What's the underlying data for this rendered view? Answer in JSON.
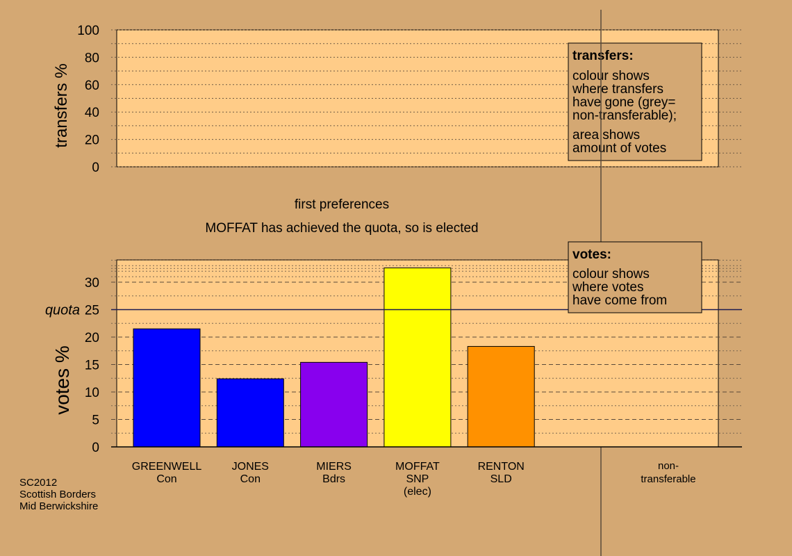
{
  "chart_data": [
    {
      "type": "area",
      "ylabel": "transfers %",
      "ylim": [
        0,
        100
      ],
      "yticks": [
        0,
        20,
        40,
        60,
        80,
        100
      ],
      "legend_box": {
        "title": "transfers:",
        "lines1": [
          "colour shows",
          "where transfers",
          "have gone (grey=",
          "non-transferable);"
        ],
        "lines2": [
          "area shows",
          "amount of votes"
        ]
      }
    },
    {
      "type": "bar",
      "title": "first preferences",
      "subtitle": "MOFFAT has achieved the quota, so is elected",
      "ylabel": "votes %",
      "ylim": [
        0,
        34
      ],
      "yticks": [
        0,
        5,
        10,
        15,
        20,
        25,
        30
      ],
      "quota": {
        "label": "quota",
        "value": 25
      },
      "categories": [
        {
          "lines": [
            "GREENWELL",
            "Con"
          ]
        },
        {
          "lines": [
            "JONES",
            "Con"
          ]
        },
        {
          "lines": [
            "MIERS",
            "Bdrs"
          ]
        },
        {
          "lines": [
            "MOFFAT",
            "SNP",
            "(elec)"
          ]
        },
        {
          "lines": [
            "RENTON",
            "SLD"
          ]
        }
      ],
      "values": [
        21.5,
        12.4,
        15.4,
        32.6,
        18.3
      ],
      "colors": [
        "#0000ff",
        "#0000ff",
        "#8800ee",
        "#ffff00",
        "#ff9100"
      ],
      "nontransferable_label": [
        "non-",
        "transferable"
      ],
      "legend_box": {
        "title": "votes:",
        "lines": [
          "colour shows",
          "where votes",
          "have come from"
        ]
      }
    }
  ],
  "footer": {
    "lines": [
      "SC2012",
      "Scottish Borders",
      "Mid Berwickshire"
    ]
  },
  "colors": {
    "background": "#d4a873",
    "plot_area": "#ffcc88",
    "legend_box": "#d4a873"
  }
}
